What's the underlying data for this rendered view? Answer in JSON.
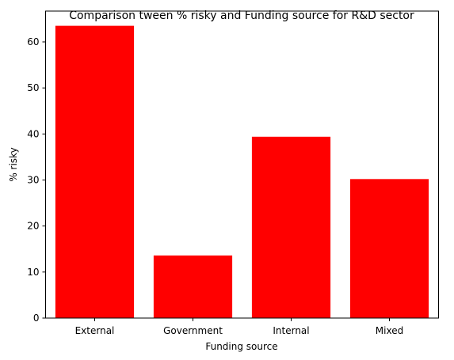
{
  "chart_data": {
    "type": "bar",
    "title": "Comparison tween % risky and Funding source for R&D sector",
    "xlabel": "Funding source",
    "ylabel": "% risky",
    "categories": [
      "External",
      "Government",
      "Internal",
      "Mixed"
    ],
    "values": [
      63.5,
      13.6,
      39.4,
      30.2
    ],
    "ylim": [
      0,
      66.7
    ],
    "yticks": [
      0,
      10,
      20,
      30,
      40,
      50,
      60
    ],
    "bar_color": "#ff0000",
    "grid": false,
    "legend": "none"
  }
}
